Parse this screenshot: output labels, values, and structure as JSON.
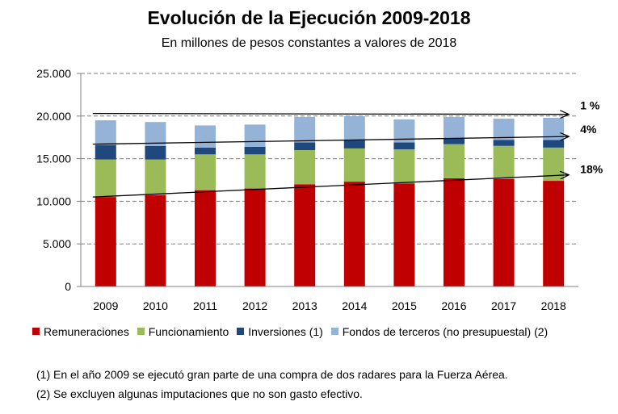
{
  "chart_data": {
    "type": "bar",
    "stacked": true,
    "title": "Evolución de la Ejecución 2009-2018",
    "subtitle": "En millones de pesos constantes a valores de 2018",
    "categories": [
      "2009",
      "2010",
      "2011",
      "2012",
      "2013",
      "2014",
      "2015",
      "2016",
      "2017",
      "2018"
    ],
    "series": [
      {
        "name": "Remuneraciones",
        "color": "#c00000",
        "values": [
          10500,
          10700,
          11300,
          11500,
          12000,
          12300,
          12100,
          12700,
          12600,
          12400
        ]
      },
      {
        "name": "Funcionamiento",
        "color": "#9bbb59",
        "values": [
          4400,
          4200,
          4200,
          4000,
          4000,
          3900,
          4000,
          4000,
          3900,
          3900
        ]
      },
      {
        "name": "Inversiones (1)",
        "color": "#1f497d",
        "values": [
          1700,
          1600,
          800,
          900,
          900,
          1000,
          800,
          700,
          700,
          900
        ]
      },
      {
        "name": "Fondos de terceros (no presupuestal) (2)",
        "color": "#95b3d7",
        "values": [
          2900,
          2800,
          2600,
          2600,
          3000,
          2800,
          2700,
          2500,
          2500,
          2600
        ]
      }
    ],
    "yticks": [
      "0",
      "5.000",
      "10.000",
      "15.000",
      "20.000",
      "25.000"
    ],
    "ylim": [
      0,
      25000
    ],
    "grid": "dashed-horizontal",
    "trend_lines": [
      {
        "label": "1 %",
        "from": 20300,
        "to": 20200
      },
      {
        "label": "4%",
        "from": 16700,
        "to": 17600
      },
      {
        "label": "18%",
        "from": 10500,
        "to": 13100
      }
    ]
  },
  "legend": [
    {
      "label": "Remuneraciones",
      "color": "#c00000"
    },
    {
      "label": "Funcionamiento",
      "color": "#9bbb59"
    },
    {
      "label": "Inversiones (1)",
      "color": "#1f497d"
    },
    {
      "label": "Fondos de terceros (no presupuestal) (2)",
      "color": "#95b3d7"
    }
  ],
  "notes": [
    "(1) En el año 2009 se ejecutó gran parte de una compra de dos radares para la Fuerza Aérea.",
    "(2) Se excluyen algunas imputaciones que no son gasto efectivo."
  ]
}
